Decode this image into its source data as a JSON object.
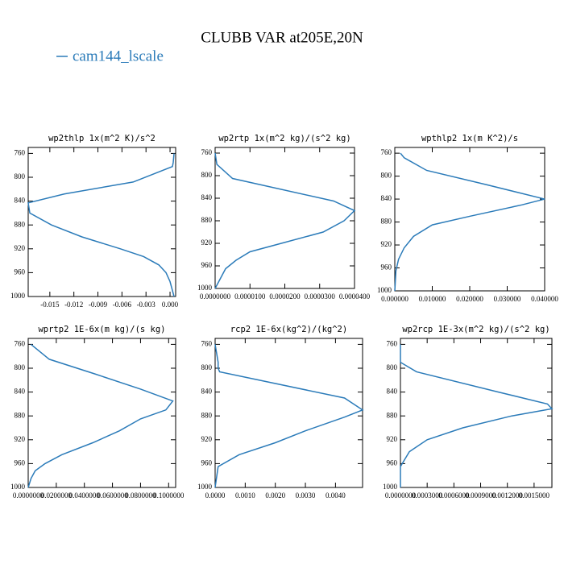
{
  "figure": {
    "title": "CLUBB VAR at205E,20N",
    "legend": "cam144_lscale",
    "color": "#2b7bb9"
  },
  "chart_data": [
    {
      "type": "line",
      "title": "wp2thlp  1x(m^2 K)/s^2",
      "y": [
        760,
        775,
        782,
        808,
        828,
        843,
        860,
        880,
        900,
        920,
        933,
        947,
        960,
        975,
        1000
      ],
      "series": [
        {
          "color": "#2b7bb9",
          "values": [
            0.0005,
            0.0004,
            0.0003,
            -0.0046,
            -0.0132,
            -0.0177,
            -0.0175,
            -0.0148,
            -0.011,
            -0.0062,
            -0.0033,
            -0.0014,
            -0.0005,
            0.0,
            0.0005
          ]
        }
      ],
      "xlim": [
        -0.0177,
        0.0007
      ],
      "xticks": [
        -0.015,
        -0.012,
        -0.009,
        -0.006,
        -0.003,
        {
          "value": 0,
          "label": "0.000"
        }
      ],
      "ylim": [
        1000,
        750
      ],
      "yticks": [
        760,
        800,
        840,
        880,
        920,
        960,
        1000
      ]
    },
    {
      "type": "line",
      "title": "wp2rtp  1x(m^2 kg)/(s^2 kg)",
      "y": [
        760,
        780,
        805,
        845,
        862,
        880,
        900,
        920,
        935,
        950,
        965,
        1000
      ],
      "series": [
        {
          "color": "#2b7bb9",
          "values": [
            0.0,
            5e-07,
            5e-06,
            3.4e-05,
            4e-05,
            3.7e-05,
            3.1e-05,
            1.9e-05,
            1e-05,
            6e-06,
            3e-06,
            0.0
          ]
        }
      ],
      "xlim": [
        0,
        4e-05
      ],
      "xticks": [
        {
          "value": 0,
          "label": "0.0000000"
        },
        {
          "value": 1e-05,
          "label": "0.0000100"
        },
        {
          "value": 2e-05,
          "label": "0.0000200"
        },
        {
          "value": 3e-05,
          "label": "0.0000300"
        },
        {
          "value": 4e-05,
          "label": "0.0000400"
        }
      ],
      "ylim": [
        1000,
        750
      ],
      "yticks": [
        760,
        800,
        840,
        880,
        920,
        960,
        1000
      ]
    },
    {
      "type": "line",
      "title": "wpthlp2  1x(m K^2)/s",
      "y": [
        760,
        768,
        790,
        815,
        840,
        850,
        870,
        885,
        905,
        925,
        945,
        965,
        1000
      ],
      "series": [
        {
          "color": "#2b7bb9",
          "values": [
            0.0015,
            0.0025,
            0.0085,
            0.0245,
            0.04,
            0.034,
            0.02,
            0.01,
            0.005,
            0.0025,
            0.001,
            0.0003,
            0.0
          ]
        }
      ],
      "xlim": [
        0,
        0.04
      ],
      "xticks": [
        {
          "value": 0,
          "label": "0.000000"
        },
        {
          "value": 0.01,
          "label": "0.010000"
        },
        {
          "value": 0.02,
          "label": "0.020000"
        },
        {
          "value": 0.03,
          "label": "0.030000"
        },
        {
          "value": 0.04,
          "label": "0.040000"
        }
      ],
      "ylim": [
        1000,
        750
      ],
      "yticks": [
        760,
        800,
        840,
        880,
        920,
        960,
        1000
      ]
    },
    {
      "type": "line",
      "title": "wprtp2  1E-6x(m kg)/(s kg)",
      "y": [
        760,
        785,
        810,
        835,
        855,
        870,
        885,
        905,
        925,
        945,
        960,
        972,
        985,
        1000
      ],
      "series": [
        {
          "color": "#2b7bb9",
          "values": [
            0.002,
            0.015,
            0.048,
            0.08,
            0.103,
            0.098,
            0.08,
            0.065,
            0.046,
            0.024,
            0.012,
            0.005,
            0.002,
            0.0
          ]
        }
      ],
      "xlim": [
        0,
        0.105
      ],
      "xticks": [
        {
          "value": 0,
          "label": "0.0000000"
        },
        {
          "value": 0.02,
          "label": "0.0200000"
        },
        {
          "value": 0.04,
          "label": "0.0400000"
        },
        {
          "value": 0.06,
          "label": "0.0600000"
        },
        {
          "value": 0.08,
          "label": "0.0800000"
        },
        {
          "value": 0.1,
          "label": "0.1000000"
        }
      ],
      "ylim": [
        1000,
        750
      ],
      "yticks": [
        760,
        800,
        840,
        880,
        920,
        960,
        1000
      ]
    },
    {
      "type": "line",
      "title": "rcp2  1E-6x(kg^2)/(kg^2)",
      "y": [
        760,
        790,
        800,
        806,
        850,
        870,
        882,
        905,
        925,
        945,
        965,
        1000
      ],
      "series": [
        {
          "color": "#2b7bb9",
          "values": [
            0.0,
            0.0001,
            0.0001,
            0.00015,
            0.0043,
            0.0049,
            0.0043,
            0.003,
            0.002,
            0.0008,
            0.0001,
            0.0
          ]
        }
      ],
      "xlim": [
        0,
        0.0049
      ],
      "xticks": [
        {
          "value": 0,
          "label": "0.0000"
        },
        {
          "value": 0.001,
          "label": "0.0010"
        },
        {
          "value": 0.002,
          "label": "0.0020"
        },
        {
          "value": 0.003,
          "label": "0.0030"
        },
        {
          "value": 0.004,
          "label": "0.0040"
        }
      ],
      "ylim": [
        1000,
        750
      ],
      "yticks": [
        760,
        800,
        840,
        880,
        920,
        960,
        1000
      ]
    },
    {
      "type": "line",
      "title": "wp2rcp  1E-3x(m^2 kg)/(s^2 kg)",
      "y": [
        760,
        790,
        806,
        840,
        860,
        868,
        880,
        900,
        920,
        940,
        965,
        1000
      ],
      "series": [
        {
          "color": "#2b7bb9",
          "values": [
            0.0,
            0.0,
            0.00018,
            0.0011,
            0.00165,
            0.0017,
            0.00125,
            0.0007,
            0.0003,
            0.0001,
            0.0,
            0.0
          ]
        }
      ],
      "xlim": [
        0,
        0.0017
      ],
      "xticks": [
        {
          "value": 0,
          "label": "0.0000000"
        },
        {
          "value": 0.0003,
          "label": "0.0003000"
        },
        {
          "value": 0.0006,
          "label": "0.0006000"
        },
        {
          "value": 0.0009,
          "label": "0.0009000"
        },
        {
          "value": 0.0012,
          "label": "0.0012000"
        },
        {
          "value": 0.0015,
          "label": "0.0015000"
        }
      ],
      "ylim": [
        1000,
        750
      ],
      "yticks": [
        760,
        800,
        840,
        880,
        920,
        960,
        1000
      ]
    }
  ]
}
